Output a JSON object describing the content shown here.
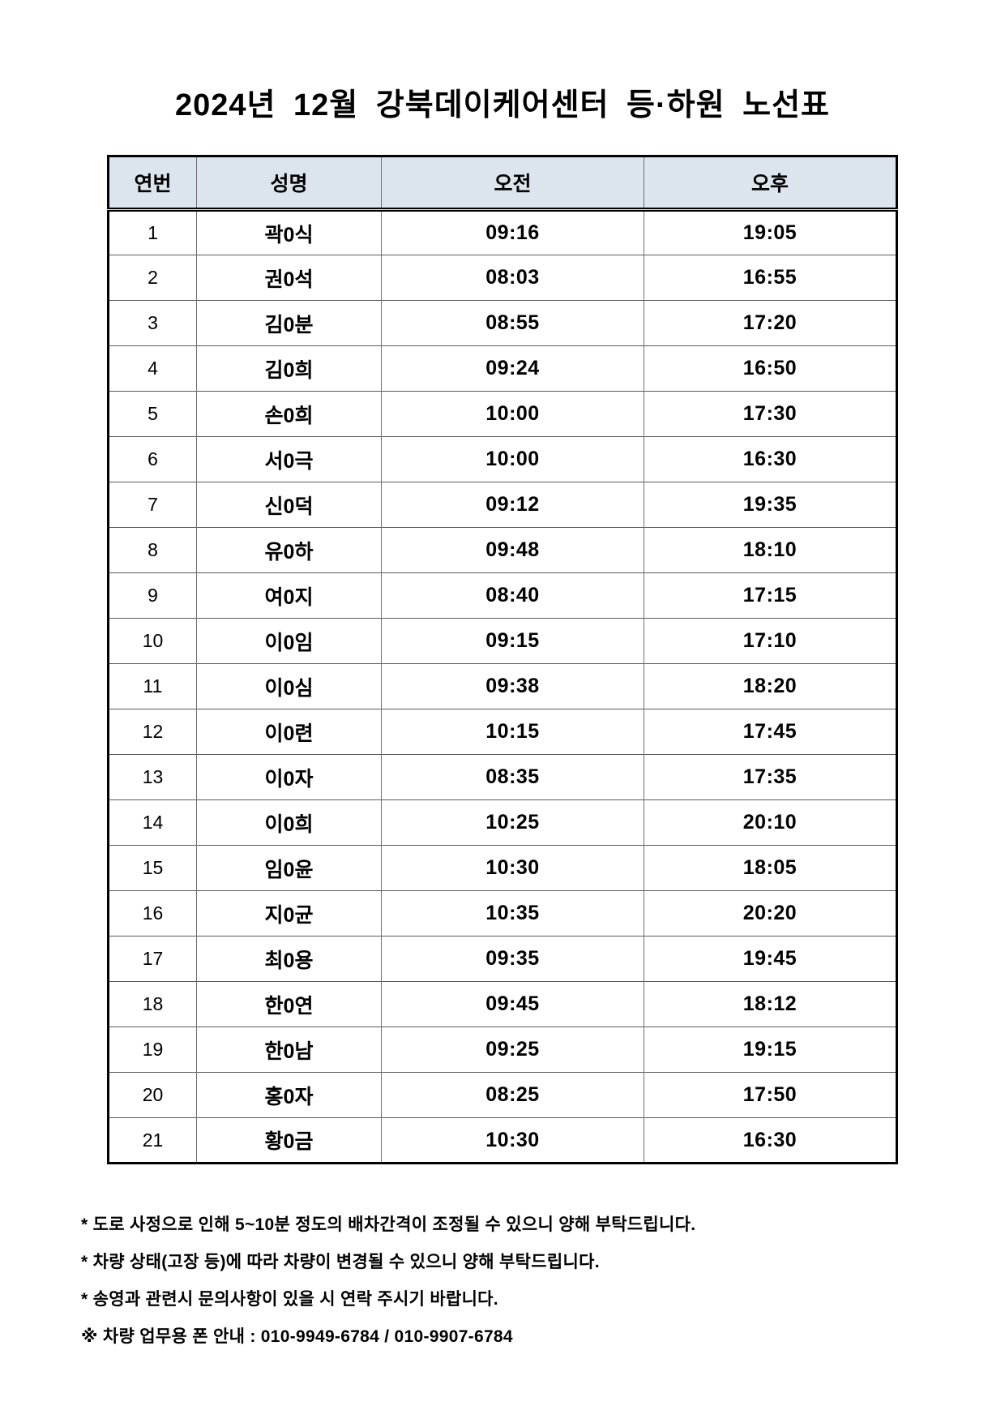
{
  "page": {
    "title": "2024년 12월 강북데이케어센터 등·하원 노선표"
  },
  "table": {
    "headers": {
      "no": "연번",
      "name": "성명",
      "am": "오전",
      "pm": "오후"
    },
    "rows": [
      {
        "no": "1",
        "name": "곽0식",
        "am": "09:16",
        "pm": "19:05"
      },
      {
        "no": "2",
        "name": "권0석",
        "am": "08:03",
        "pm": "16:55"
      },
      {
        "no": "3",
        "name": "김0분",
        "am": "08:55",
        "pm": "17:20"
      },
      {
        "no": "4",
        "name": "김0희",
        "am": "09:24",
        "pm": "16:50"
      },
      {
        "no": "5",
        "name": "손0희",
        "am": "10:00",
        "pm": "17:30"
      },
      {
        "no": "6",
        "name": "서0극",
        "am": "10:00",
        "pm": "16:30"
      },
      {
        "no": "7",
        "name": "신0덕",
        "am": "09:12",
        "pm": "19:35"
      },
      {
        "no": "8",
        "name": "유0하",
        "am": "09:48",
        "pm": "18:10"
      },
      {
        "no": "9",
        "name": "여0지",
        "am": "08:40",
        "pm": "17:15"
      },
      {
        "no": "10",
        "name": "이0임",
        "am": "09:15",
        "pm": "17:10"
      },
      {
        "no": "11",
        "name": "이0심",
        "am": "09:38",
        "pm": "18:20"
      },
      {
        "no": "12",
        "name": "이0련",
        "am": "10:15",
        "pm": "17:45"
      },
      {
        "no": "13",
        "name": "이0자",
        "am": "08:35",
        "pm": "17:35"
      },
      {
        "no": "14",
        "name": "이0희",
        "am": "10:25",
        "pm": "20:10"
      },
      {
        "no": "15",
        "name": "임0윤",
        "am": "10:30",
        "pm": "18:05"
      },
      {
        "no": "16",
        "name": "지0균",
        "am": "10:35",
        "pm": "20:20"
      },
      {
        "no": "17",
        "name": "최0용",
        "am": "09:35",
        "pm": "19:45"
      },
      {
        "no": "18",
        "name": "한0연",
        "am": "09:45",
        "pm": "18:12"
      },
      {
        "no": "19",
        "name": "한0남",
        "am": "09:25",
        "pm": "19:15"
      },
      {
        "no": "20",
        "name": "홍0자",
        "am": "08:25",
        "pm": "17:50"
      },
      {
        "no": "21",
        "name": "황0금",
        "am": "10:30",
        "pm": "16:30"
      }
    ]
  },
  "notes": [
    "* 도로 사정으로 인해 5~10분 정도의 배차간격이 조정될 수 있으니 양해 부탁드립니다.",
    "* 차량 상태(고장 등)에 따라 차량이 변경될 수 있으니 양해 부탁드립니다.",
    "* 송영과 관련시 문의사항이 있을 시 연락 주시기 바랍니다.",
    "※ 차량 업무용 폰 안내 : 010-9949-6784 / 010-9907-6784"
  ],
  "colors": {
    "header_bg": "#dce4ee",
    "outer_border": "#000000",
    "inner_border": "#707070"
  }
}
